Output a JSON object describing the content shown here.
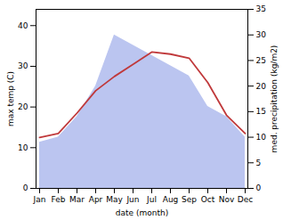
{
  "chart_data": {
    "type": "line",
    "xlabel": "date (month)",
    "ylabel": "max temp (C)",
    "y2label": "med. precipitation (kg/m2)",
    "categories": [
      "Jan",
      "Feb",
      "Mar",
      "Apr",
      "May",
      "Jun",
      "Jul",
      "Aug",
      "Sep",
      "Oct",
      "Nov",
      "Dec"
    ],
    "series": [
      {
        "type": "area",
        "axis": "y2",
        "color": "#bbc5f0",
        "values": [
          9,
          10,
          14,
          20,
          30,
          28,
          26,
          24,
          22,
          16,
          14,
          10
        ]
      },
      {
        "type": "line",
        "color": "#c0393b",
        "values": [
          12.5,
          13.5,
          18.5,
          24.0,
          27.5,
          30.5,
          33.5,
          33.0,
          32.0,
          26.0,
          18.0,
          13.5
        ]
      }
    ],
    "ylim": [
      0,
      44
    ],
    "yticks": [
      0,
      10,
      20,
      30,
      40
    ],
    "y2lim": [
      0,
      35
    ],
    "y2ticks": [
      0,
      5,
      10,
      15,
      20,
      25,
      30,
      35
    ],
    "grid": false
  }
}
